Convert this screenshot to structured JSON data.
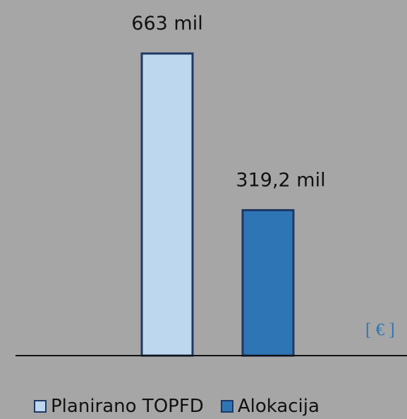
{
  "chart_data": {
    "type": "bar",
    "categories": [
      "Planirano TOPFD",
      "Alokacija"
    ],
    "values": [
      663,
      319.2
    ],
    "data_labels": [
      "663 mil",
      "319,2 mil"
    ],
    "colors": [
      "#bdd7ee",
      "#2e75b6"
    ],
    "border_color": "#1f3864",
    "unit_label": "[ € ]",
    "ylim": [
      0,
      663
    ],
    "grid": false,
    "legend_position": "bottom",
    "legend": [
      "Planirano TOPFD",
      "Alokacija"
    ]
  }
}
